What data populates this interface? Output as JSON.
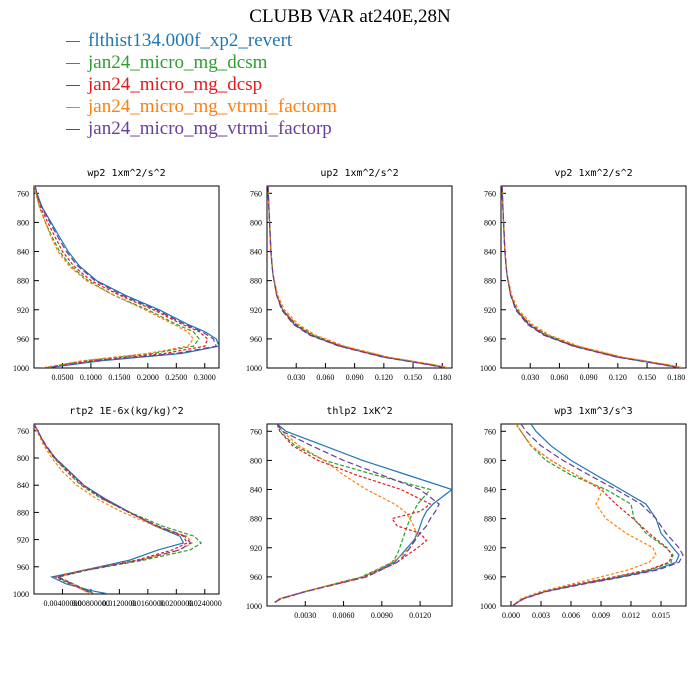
{
  "chart_title": "CLUBB VAR at240E,28N",
  "series_legend": [
    {
      "name": "flthist134.000f_xp2_revert",
      "color": "#1f77b4"
    },
    {
      "name": "jan24_micro_mg_dcsm",
      "color": "#2ca02c"
    },
    {
      "name": "jan24_micro_mg_dcsp",
      "color": "#e31a1c"
    },
    {
      "name": "jan24_micro_mg_vtrmi_factorm",
      "color": "#ff7f0e"
    },
    {
      "name": "jan24_micro_mg_vtrmi_factorp",
      "color": "#6a3d9a"
    }
  ],
  "chart_data": [
    {
      "type": "line",
      "title": "wp2  1xm^2/s^2",
      "ylim": [
        1000,
        750
      ],
      "yticks": [
        "760",
        "800",
        "840",
        "880",
        "920",
        "960",
        "1000"
      ],
      "xlim": [
        0,
        0.325
      ],
      "xticks": [
        "0.0500",
        "0.1000",
        "0.1500",
        "0.2000",
        "0.2500",
        "0.3000"
      ],
      "y": [
        750,
        760,
        780,
        800,
        820,
        840,
        860,
        880,
        900,
        920,
        940,
        950,
        960,
        970,
        980,
        990,
        1000
      ],
      "series": [
        {
          "name": "flthist134.000f_xp2_revert",
          "values": [
            0.002,
            0.005,
            0.015,
            0.03,
            0.045,
            0.06,
            0.08,
            0.11,
            0.16,
            0.22,
            0.27,
            0.3,
            0.32,
            0.325,
            0.26,
            0.12,
            0.02
          ]
        },
        {
          "name": "jan24_micro_mg_dcsm",
          "values": [
            0.001,
            0.004,
            0.01,
            0.02,
            0.032,
            0.045,
            0.065,
            0.095,
            0.14,
            0.2,
            0.25,
            0.28,
            0.29,
            0.28,
            0.21,
            0.09,
            0.015
          ]
        },
        {
          "name": "jan24_micro_mg_dcsp",
          "values": [
            0.001,
            0.004,
            0.012,
            0.024,
            0.037,
            0.05,
            0.07,
            0.1,
            0.15,
            0.21,
            0.26,
            0.29,
            0.305,
            0.3,
            0.23,
            0.1,
            0.017
          ]
        },
        {
          "name": "jan24_micro_mg_vtrmi_factorm",
          "values": [
            0.001,
            0.003,
            0.01,
            0.02,
            0.03,
            0.042,
            0.062,
            0.092,
            0.14,
            0.195,
            0.245,
            0.27,
            0.28,
            0.27,
            0.2,
            0.085,
            0.014
          ]
        },
        {
          "name": "jan24_micro_mg_vtrmi_factorp",
          "values": [
            0.002,
            0.005,
            0.014,
            0.028,
            0.042,
            0.057,
            0.077,
            0.107,
            0.155,
            0.215,
            0.265,
            0.295,
            0.315,
            0.32,
            0.25,
            0.11,
            0.019
          ]
        }
      ]
    },
    {
      "type": "line",
      "title": "up2  1xm^2/s^2",
      "ylim": [
        1000,
        750
      ],
      "yticks": [
        "760",
        "800",
        "840",
        "880",
        "920",
        "960",
        "1000"
      ],
      "xlim": [
        0,
        0.19
      ],
      "xticks": [
        "0.030",
        "0.060",
        "0.090",
        "0.120",
        "0.150",
        "0.180"
      ],
      "y": [
        750,
        780,
        810,
        840,
        870,
        900,
        920,
        940,
        955,
        970,
        985,
        995,
        1000
      ],
      "series": [
        {
          "name": "flthist134.000f_xp2_revert",
          "values": [
            0.001,
            0.002,
            0.003,
            0.004,
            0.006,
            0.01,
            0.016,
            0.028,
            0.045,
            0.075,
            0.12,
            0.165,
            0.185
          ]
        },
        {
          "name": "jan24_micro_mg_dcsm",
          "values": [
            0.001,
            0.002,
            0.003,
            0.004,
            0.006,
            0.01,
            0.016,
            0.03,
            0.048,
            0.078,
            0.123,
            0.168,
            0.187
          ]
        },
        {
          "name": "jan24_micro_mg_dcsp",
          "values": [
            0.001,
            0.002,
            0.003,
            0.004,
            0.006,
            0.01,
            0.016,
            0.029,
            0.046,
            0.076,
            0.121,
            0.166,
            0.186
          ]
        },
        {
          "name": "jan24_micro_mg_vtrmi_factorm",
          "values": [
            0.001,
            0.002,
            0.003,
            0.004,
            0.006,
            0.011,
            0.018,
            0.032,
            0.05,
            0.08,
            0.125,
            0.17,
            0.188
          ]
        },
        {
          "name": "jan24_micro_mg_vtrmi_factorp",
          "values": [
            0.001,
            0.002,
            0.003,
            0.004,
            0.006,
            0.01,
            0.015,
            0.027,
            0.044,
            0.074,
            0.119,
            0.164,
            0.184
          ]
        }
      ]
    },
    {
      "type": "line",
      "title": "vp2  1xm^2/s^2",
      "ylim": [
        1000,
        750
      ],
      "yticks": [
        "760",
        "800",
        "840",
        "880",
        "920",
        "960",
        "1000"
      ],
      "xlim": [
        0,
        0.19
      ],
      "xticks": [
        "0.030",
        "0.060",
        "0.090",
        "0.120",
        "0.150",
        "0.180"
      ],
      "y": [
        750,
        780,
        810,
        840,
        870,
        900,
        920,
        940,
        955,
        970,
        985,
        995,
        1000
      ],
      "series": [
        {
          "name": "flthist134.000f_xp2_revert",
          "values": [
            0.001,
            0.002,
            0.003,
            0.004,
            0.006,
            0.01,
            0.016,
            0.028,
            0.045,
            0.075,
            0.12,
            0.165,
            0.185
          ]
        },
        {
          "name": "jan24_micro_mg_dcsm",
          "values": [
            0.001,
            0.002,
            0.003,
            0.004,
            0.006,
            0.01,
            0.016,
            0.03,
            0.048,
            0.078,
            0.123,
            0.168,
            0.187
          ]
        },
        {
          "name": "jan24_micro_mg_dcsp",
          "values": [
            0.001,
            0.002,
            0.003,
            0.004,
            0.006,
            0.01,
            0.016,
            0.029,
            0.046,
            0.076,
            0.121,
            0.166,
            0.186
          ]
        },
        {
          "name": "jan24_micro_mg_vtrmi_factorm",
          "values": [
            0.001,
            0.002,
            0.003,
            0.004,
            0.006,
            0.011,
            0.018,
            0.032,
            0.05,
            0.08,
            0.125,
            0.17,
            0.188
          ]
        },
        {
          "name": "jan24_micro_mg_vtrmi_factorp",
          "values": [
            0.001,
            0.002,
            0.003,
            0.004,
            0.006,
            0.01,
            0.015,
            0.027,
            0.044,
            0.074,
            0.119,
            0.164,
            0.184
          ]
        }
      ]
    },
    {
      "type": "line",
      "title": "rtp2  1E-6x(kg/kg)^2",
      "ylim": [
        1000,
        750
      ],
      "yticks": [
        "760",
        "800",
        "840",
        "880",
        "920",
        "960",
        "1000"
      ],
      "xlim": [
        0,
        0.026
      ],
      "xticks": [
        "0.00400000",
        "0.00800000",
        "0.0120000",
        "0.0160000",
        "0.0200000",
        "0.0240000"
      ],
      "y": [
        750,
        760,
        780,
        800,
        820,
        840,
        860,
        880,
        900,
        915,
        925,
        935,
        950,
        965,
        975,
        985,
        995,
        1000
      ],
      "series": [
        {
          "name": "flthist134.000f_xp2_revert",
          "values": [
            0.0,
            0.0005,
            0.0015,
            0.003,
            0.005,
            0.007,
            0.01,
            0.0135,
            0.017,
            0.0205,
            0.021,
            0.0175,
            0.0135,
            0.007,
            0.0025,
            0.0045,
            0.008,
            0.0105
          ]
        },
        {
          "name": "jan24_micro_mg_dcsm",
          "values": [
            0.0,
            0.0005,
            0.0015,
            0.0028,
            0.0046,
            0.0066,
            0.0095,
            0.0135,
            0.018,
            0.0225,
            0.0235,
            0.022,
            0.0155,
            0.0075,
            0.0035,
            0.0055,
            0.0075,
            0.0085
          ]
        },
        {
          "name": "jan24_micro_mg_dcsp",
          "values": [
            0.0,
            0.0005,
            0.0015,
            0.0029,
            0.0048,
            0.0068,
            0.0097,
            0.0133,
            0.0172,
            0.021,
            0.0215,
            0.0195,
            0.0145,
            0.007,
            0.003,
            0.005,
            0.0072,
            0.0082
          ]
        },
        {
          "name": "jan24_micro_mg_vtrmi_factorm",
          "values": [
            0.0,
            0.0004,
            0.0013,
            0.0025,
            0.004,
            0.006,
            0.0088,
            0.0125,
            0.017,
            0.0215,
            0.0222,
            0.0205,
            0.0148,
            0.0072,
            0.0033,
            0.0052,
            0.007,
            0.008
          ]
        },
        {
          "name": "jan24_micro_mg_vtrmi_factorp",
          "values": [
            0.0,
            0.0005,
            0.0016,
            0.003,
            0.005,
            0.007,
            0.0098,
            0.0134,
            0.0174,
            0.0212,
            0.022,
            0.0205,
            0.015,
            0.0073,
            0.0032,
            0.0054,
            0.0074,
            0.0084
          ]
        }
      ]
    },
    {
      "type": "line",
      "title": "thlp2  1xK^2",
      "ylim": [
        1000,
        750
      ],
      "yticks": [
        "760",
        "800",
        "840",
        "880",
        "920",
        "960",
        "1000"
      ],
      "xlim": [
        0,
        0.0145
      ],
      "xticks": [
        "0.0030",
        "0.0060",
        "0.0090",
        "0.0120"
      ],
      "y": [
        750,
        760,
        780,
        800,
        820,
        840,
        860,
        870,
        880,
        890,
        900,
        910,
        920,
        930,
        940,
        960,
        980,
        990,
        995
      ],
      "series": [
        {
          "name": "flthist134.000f_xp2_revert",
          "values": [
            0.0008,
            0.0015,
            0.0045,
            0.0075,
            0.011,
            0.0145,
            0.013,
            0.0125,
            0.0122,
            0.012,
            0.0118,
            0.0115,
            0.011,
            0.0105,
            0.01,
            0.0075,
            0.003,
            0.001,
            0.0006
          ]
        },
        {
          "name": "jan24_micro_mg_dcsm",
          "values": [
            0.0008,
            0.001,
            0.0022,
            0.0045,
            0.0085,
            0.0128,
            0.0118,
            0.0115,
            0.0112,
            0.011,
            0.0108,
            0.0106,
            0.0104,
            0.0102,
            0.0098,
            0.0074,
            0.003,
            0.001,
            0.0006
          ]
        },
        {
          "name": "jan24_micro_mg_dcsp",
          "values": [
            0.0008,
            0.001,
            0.002,
            0.004,
            0.007,
            0.0105,
            0.0128,
            0.012,
            0.0098,
            0.0102,
            0.012,
            0.0125,
            0.0118,
            0.011,
            0.0102,
            0.0077,
            0.0031,
            0.0011,
            0.0006
          ]
        },
        {
          "name": "jan24_micro_mg_vtrmi_factorm",
          "values": [
            0.0008,
            0.0012,
            0.0025,
            0.0045,
            0.006,
            0.0078,
            0.01,
            0.0108,
            0.0112,
            0.0115,
            0.0117,
            0.0116,
            0.0112,
            0.0106,
            0.0098,
            0.0075,
            0.003,
            0.001,
            0.0006
          ]
        },
        {
          "name": "jan24_micro_mg_vtrmi_factorp",
          "values": [
            0.0008,
            0.0012,
            0.0035,
            0.006,
            0.009,
            0.012,
            0.0135,
            0.0132,
            0.0128,
            0.0125,
            0.012,
            0.0116,
            0.0112,
            0.0108,
            0.0102,
            0.0078,
            0.0031,
            0.0011,
            0.0006
          ]
        }
      ]
    },
    {
      "type": "line",
      "title": "wp3  1xm^3/s^3",
      "ylim": [
        1000,
        750
      ],
      "yticks": [
        "760",
        "800",
        "840",
        "880",
        "920",
        "960",
        "1000"
      ],
      "xlim": [
        -0.001,
        0.0175
      ],
      "xticks": [
        "0.000",
        "0.003",
        "0.006",
        "0.009",
        "0.012",
        "0.015"
      ],
      "y": [
        750,
        760,
        780,
        800,
        820,
        840,
        860,
        880,
        900,
        920,
        930,
        940,
        950,
        960,
        970,
        980,
        990,
        1000
      ],
      "series": [
        {
          "name": "flthist134.000f_xp2_revert",
          "values": [
            0.002,
            0.0025,
            0.004,
            0.006,
            0.0085,
            0.011,
            0.0135,
            0.0145,
            0.015,
            0.0162,
            0.0168,
            0.0165,
            0.0145,
            0.011,
            0.007,
            0.0035,
            0.0012,
            0.0001
          ]
        },
        {
          "name": "jan24_micro_mg_dcsm",
          "values": [
            0.0005,
            0.001,
            0.002,
            0.0035,
            0.006,
            0.0095,
            0.012,
            0.0123,
            0.0135,
            0.0155,
            0.0162,
            0.016,
            0.014,
            0.0105,
            0.0068,
            0.0034,
            0.0012,
            0.0001
          ]
        },
        {
          "name": "jan24_micro_mg_dcsp",
          "values": [
            0.0005,
            0.001,
            0.002,
            0.004,
            0.0065,
            0.009,
            0.0105,
            0.0122,
            0.0138,
            0.0156,
            0.0161,
            0.0158,
            0.0138,
            0.0103,
            0.0066,
            0.0033,
            0.0012,
            0.0001
          ]
        },
        {
          "name": "jan24_micro_mg_vtrmi_factorm",
          "values": [
            0.0005,
            0.001,
            0.002,
            0.004,
            0.0065,
            0.0092,
            0.0085,
            0.0095,
            0.0115,
            0.0142,
            0.0145,
            0.0138,
            0.0118,
            0.009,
            0.006,
            0.003,
            0.001,
            0.0001
          ]
        },
        {
          "name": "jan24_micro_mg_vtrmi_factorp",
          "values": [
            0.001,
            0.0015,
            0.003,
            0.0052,
            0.0078,
            0.0105,
            0.013,
            0.0145,
            0.0155,
            0.0168,
            0.0172,
            0.0168,
            0.0148,
            0.0112,
            0.0072,
            0.0036,
            0.0013,
            0.0001
          ]
        }
      ]
    }
  ]
}
